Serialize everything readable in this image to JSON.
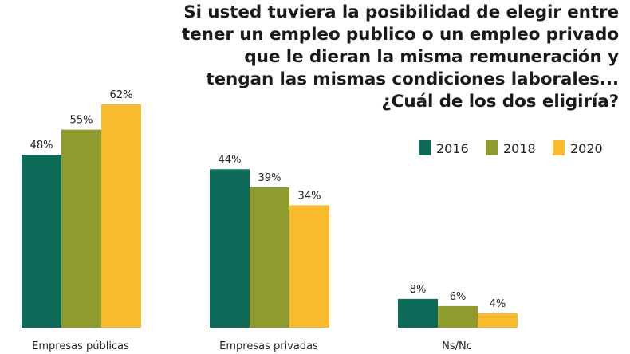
{
  "chart_data": {
    "type": "bar",
    "title_lines": [
      "Si usted tuviera la posibilidad de elegir entre",
      "tener un empleo publico o un empleo privado",
      "que le dieran la misma remuneración y",
      "tengan las mismas condiciones laborales...",
      "¿Cuál de los dos eligiría?"
    ],
    "categories": [
      "Empresas públicas",
      "Empresas privadas",
      "Ns/Nc"
    ],
    "series": [
      {
        "name": "2016",
        "color": "#0e6b5a",
        "values": [
          48,
          44,
          8
        ],
        "labels": [
          "48%",
          "44%",
          "8%"
        ]
      },
      {
        "name": "2018",
        "color": "#8f9a2f",
        "values": [
          55,
          39,
          6
        ],
        "labels": [
          "55%",
          "39%",
          "6%"
        ]
      },
      {
        "name": "2020",
        "color": "#f8bb2b",
        "values": [
          62,
          34,
          4
        ],
        "labels": [
          "62%",
          "34%",
          "4%"
        ]
      }
    ],
    "ylim": [
      0,
      62
    ],
    "legend_position": "top-right",
    "grid": false
  }
}
